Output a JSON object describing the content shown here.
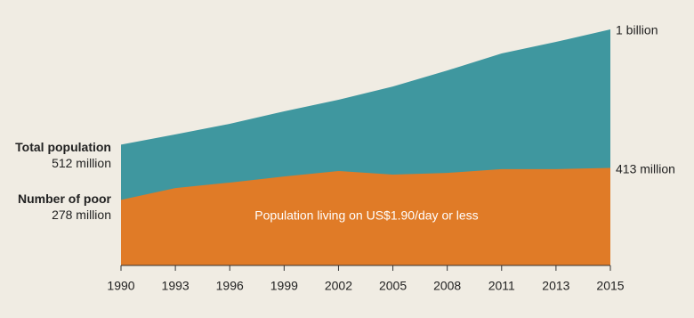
{
  "chart_data": {
    "type": "area",
    "categories": [
      "1990",
      "1993",
      "1996",
      "1999",
      "2002",
      "2005",
      "2008",
      "2011",
      "2013",
      "2015"
    ],
    "series": [
      {
        "name": "Total population",
        "color": "#3f979f",
        "values": [
          512,
          555,
          600,
          653,
          702,
          758,
          826,
          898,
          947,
          1000
        ],
        "value_labels": [
          "512 million",
          null,
          null,
          null,
          null,
          null,
          null,
          null,
          null,
          "1 billion"
        ]
      },
      {
        "name": "Number of poor",
        "color": "#e07b27",
        "values": [
          278,
          328,
          351,
          377,
          400,
          385,
          392,
          408,
          408,
          413
        ],
        "value_labels": [
          "278 million",
          null,
          null,
          null,
          null,
          null,
          null,
          null,
          null,
          "413 million"
        ]
      }
    ],
    "annotation": "Population living on US$1.90/day or less"
  }
}
